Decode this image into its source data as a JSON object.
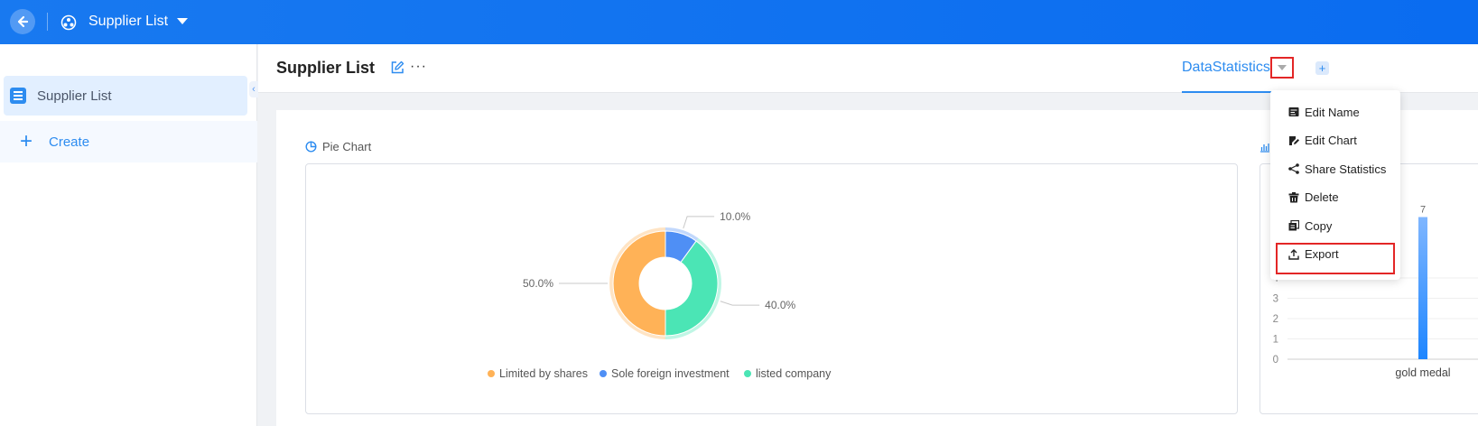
{
  "topbar": {
    "title": "Supplier List"
  },
  "sidebar": {
    "items": [
      {
        "label": "Supplier List"
      }
    ],
    "create_label": "Create"
  },
  "header": {
    "title": "Supplier List",
    "tab_label": "DataStatistics"
  },
  "pie_panel": {
    "title": "Pie Chart"
  },
  "menu": {
    "items": [
      {
        "label": "Edit Name",
        "icon": "edit-name-icon"
      },
      {
        "label": "Edit Chart",
        "icon": "edit-chart-icon"
      },
      {
        "label": "Share Statistics",
        "icon": "share-icon"
      },
      {
        "label": "Delete",
        "icon": "trash-icon"
      },
      {
        "label": "Copy",
        "icon": "copy-icon"
      },
      {
        "label": "Export",
        "icon": "export-icon"
      }
    ]
  },
  "colors": {
    "topbar": "#0a6cf0",
    "accent": "#2d8cf0",
    "highlight": "#e32626",
    "pie_orange": "#ffb257",
    "pie_blue": "#4f8ff5",
    "pie_green": "#4be5b5"
  },
  "chart_data": [
    {
      "type": "pie",
      "title": "Pie Chart",
      "labels": [
        "Limited by shares",
        "Sole foreign investment",
        "listed company"
      ],
      "values": [
        50.0,
        10.0,
        40.0
      ],
      "value_labels": [
        "50.0%",
        "10.0%",
        "40.0%"
      ],
      "colors": [
        "#ffb257",
        "#4f8ff5",
        "#4be5b5"
      ],
      "donut": true,
      "legend": "bottom"
    },
    {
      "type": "bar",
      "categories": [
        "gold medal"
      ],
      "values": [
        7
      ],
      "value_labels": [
        "7"
      ],
      "y_ticks": [
        "0",
        "1",
        "2",
        "3",
        "4"
      ],
      "ylim": [
        0,
        7
      ]
    }
  ]
}
